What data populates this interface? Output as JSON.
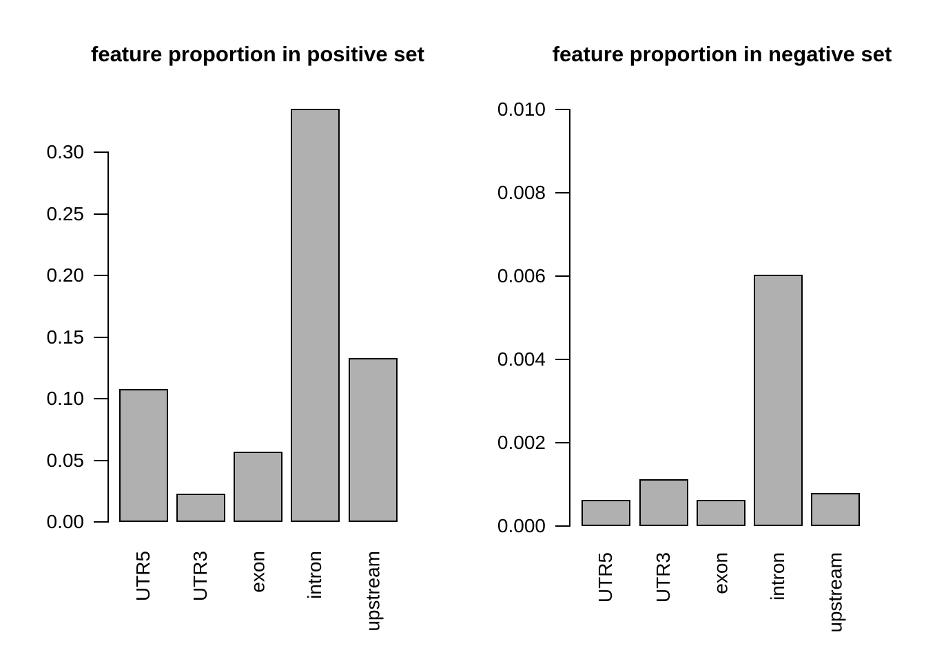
{
  "page": {
    "background_color": "#ffffff",
    "text_color": "#000000"
  },
  "chart_data": [
    {
      "type": "bar",
      "title": "feature proportion in positive set",
      "categories": [
        "UTR5",
        "UTR3",
        "exon",
        "intron",
        "upstream"
      ],
      "values": [
        0.108,
        0.023,
        0.057,
        0.335,
        0.133
      ],
      "xlabel": "",
      "ylabel": "",
      "ylim": [
        0,
        0.3
      ],
      "ytick_values": [
        0,
        0.05,
        0.1,
        0.15,
        0.2,
        0.25,
        0.3
      ],
      "ytick_labels": [
        "0.00",
        "0.05",
        "0.10",
        "0.15",
        "0.20",
        "0.25",
        "0.30"
      ],
      "grid": false,
      "legend": "none",
      "bar_fill": "#b0b0b0",
      "bar_border": "#000000",
      "x_label_rotation_degrees": 90
    },
    {
      "type": "bar",
      "title": "feature proportion in negative set",
      "categories": [
        "UTR5",
        "UTR3",
        "exon",
        "intron",
        "upstream"
      ],
      "values": [
        0.00063,
        0.00113,
        0.00062,
        0.00603,
        0.0008
      ],
      "xlabel": "",
      "ylabel": "",
      "ylim": [
        0,
        0.01
      ],
      "ytick_values": [
        0,
        0.002,
        0.004,
        0.006,
        0.008,
        0.01
      ],
      "ytick_labels": [
        "0.000",
        "0.002",
        "0.004",
        "0.006",
        "0.008",
        "0.010"
      ],
      "grid": false,
      "legend": "none",
      "bar_fill": "#b0b0b0",
      "bar_border": "#000000",
      "x_label_rotation_degrees": 90
    }
  ]
}
